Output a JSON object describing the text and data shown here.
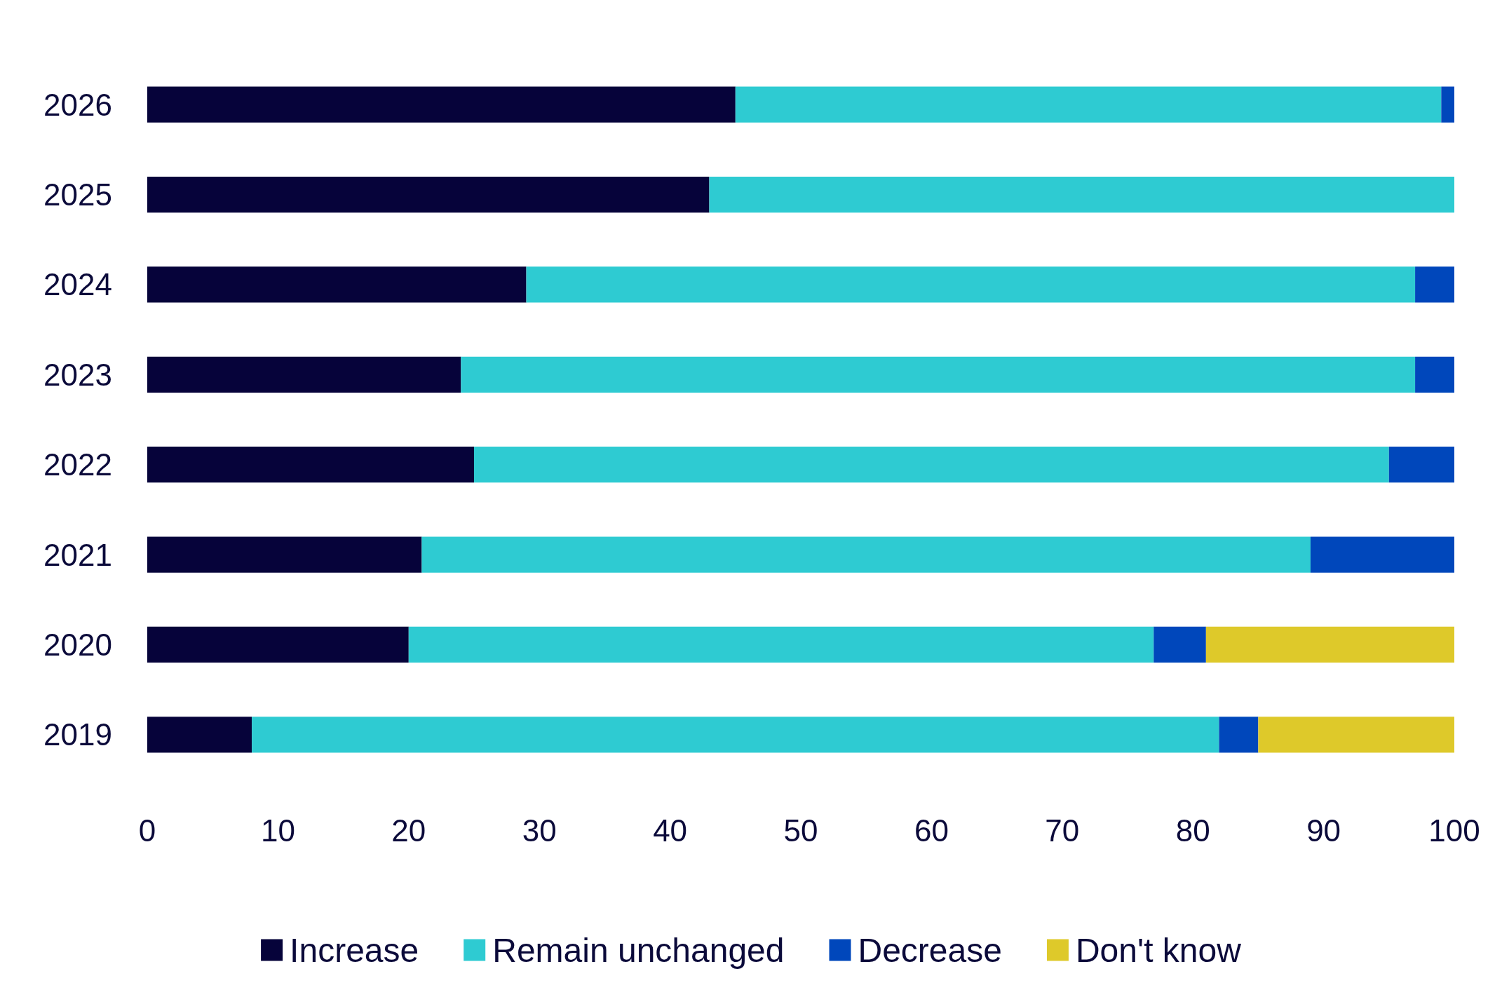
{
  "chart_data": {
    "type": "bar",
    "orientation": "horizontal",
    "stacked": true,
    "categories": [
      "2026",
      "2025",
      "2024",
      "2023",
      "2022",
      "2021",
      "2020",
      "2019"
    ],
    "series": [
      {
        "name": "Increase",
        "color": "#06033a",
        "values": [
          45,
          43,
          29,
          24,
          25,
          21,
          20,
          8
        ]
      },
      {
        "name": "Remain unchanged",
        "color": "#2ecbd2",
        "values": [
          54,
          57,
          68,
          73,
          70,
          68,
          57,
          74
        ]
      },
      {
        "name": "Decrease",
        "color": "#0047bb",
        "values": [
          1,
          null,
          3,
          3,
          5,
          11,
          4,
          3
        ]
      },
      {
        "name": "Don't know",
        "color": "#dec92a",
        "values": [
          null,
          null,
          null,
          null,
          null,
          null,
          19,
          15
        ]
      }
    ],
    "xlim": [
      0,
      100
    ],
    "xticks": [
      0,
      10,
      20,
      30,
      40,
      50,
      60,
      70,
      80,
      90,
      100
    ],
    "grid": false,
    "legend": "bottom"
  }
}
